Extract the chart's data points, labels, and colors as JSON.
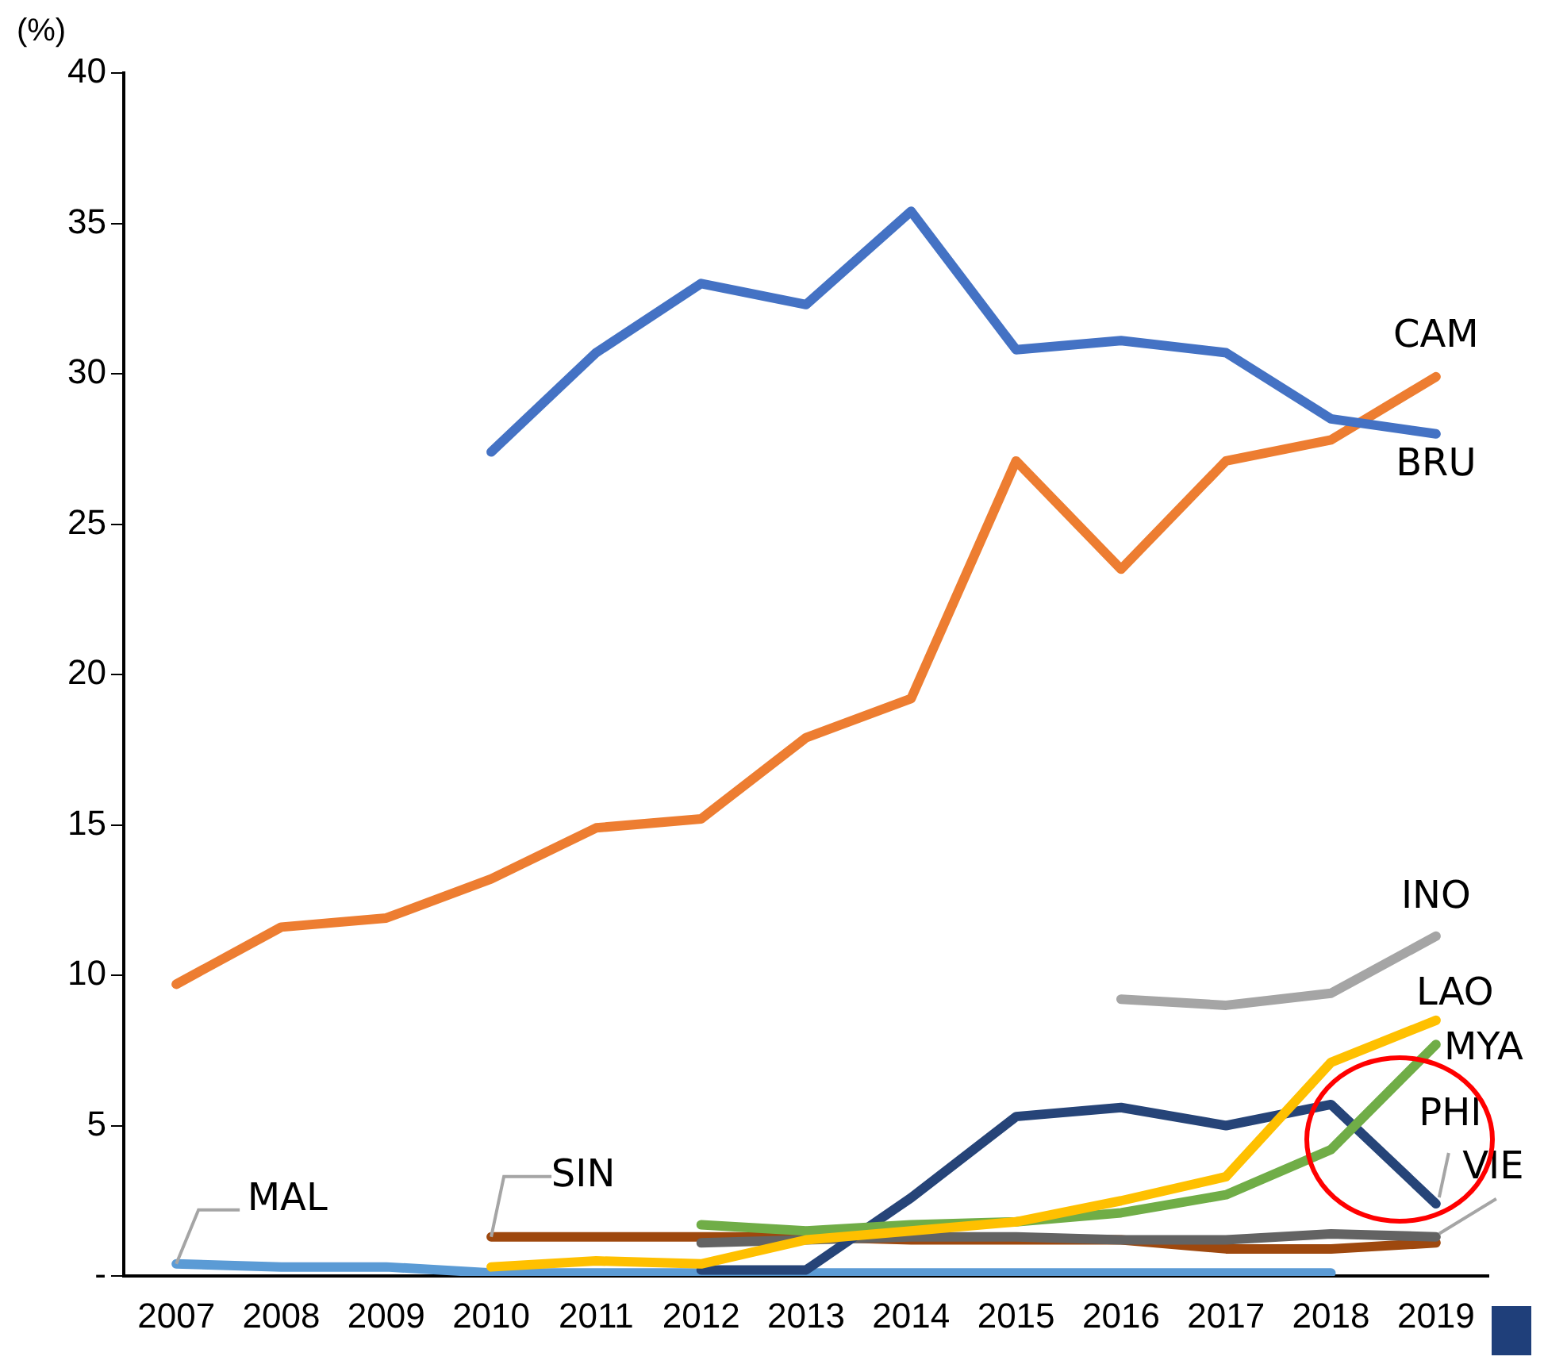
{
  "chart_data": {
    "type": "line",
    "ylabel": "(%)",
    "categories": [
      "2007",
      "2008",
      "2009",
      "2010",
      "2011",
      "2012",
      "2013",
      "2014",
      "2015",
      "2016",
      "2017",
      "2018",
      "2019"
    ],
    "ylim": [
      0,
      40
    ],
    "yticks": [
      {
        "value": 0,
        "label": "-"
      },
      5,
      10,
      15,
      20,
      25,
      30,
      35,
      40
    ],
    "grid": false,
    "legend": false,
    "marker": "none",
    "line_style": "solid",
    "series": [
      {
        "name": "BRU",
        "color": "#4472c4",
        "values": [
          null,
          null,
          null,
          27.4,
          30.7,
          33.0,
          32.3,
          35.4,
          30.8,
          31.1,
          30.7,
          28.5,
          28.0
        ]
      },
      {
        "name": "CAM",
        "color": "#ed7d31",
        "values": [
          9.7,
          11.6,
          11.9,
          13.2,
          14.9,
          15.2,
          17.9,
          19.2,
          27.1,
          23.5,
          27.1,
          27.8,
          29.9
        ]
      },
      {
        "name": "INO",
        "color": "#a5a5a5",
        "values": [
          null,
          null,
          null,
          null,
          null,
          null,
          null,
          null,
          null,
          9.2,
          9.0,
          9.4,
          11.3
        ]
      },
      {
        "name": "LAO",
        "color": "#ffc000",
        "values": [
          null,
          null,
          null,
          0.3,
          0.5,
          0.4,
          1.2,
          1.5,
          1.8,
          2.5,
          3.3,
          7.1,
          8.5
        ]
      },
      {
        "name": "MYA",
        "color": "#70ad47",
        "values": [
          null,
          null,
          null,
          null,
          null,
          1.7,
          1.5,
          1.7,
          1.8,
          2.1,
          2.7,
          4.2,
          7.7
        ]
      },
      {
        "name": "PHI",
        "color": "#264478",
        "values": [
          null,
          null,
          null,
          null,
          null,
          0.2,
          0.2,
          2.6,
          5.3,
          5.6,
          5.0,
          5.7,
          2.4
        ]
      },
      {
        "name": "VIE",
        "color": "#636363",
        "values": [
          null,
          null,
          null,
          null,
          null,
          1.1,
          1.2,
          1.3,
          1.3,
          1.2,
          1.2,
          1.4,
          1.3
        ]
      },
      {
        "name": "SIN",
        "color": "#9e480e",
        "values": [
          null,
          null,
          null,
          1.3,
          1.3,
          1.3,
          1.3,
          1.2,
          1.2,
          1.2,
          0.9,
          0.9,
          1.1
        ]
      },
      {
        "name": "MAL",
        "color": "#5b9bd5",
        "values": [
          0.4,
          0.3,
          0.3,
          0.1,
          0.1,
          0.1,
          0.1,
          0.1,
          0.1,
          0.1,
          0.1,
          0.1,
          null
        ]
      }
    ]
  }
}
